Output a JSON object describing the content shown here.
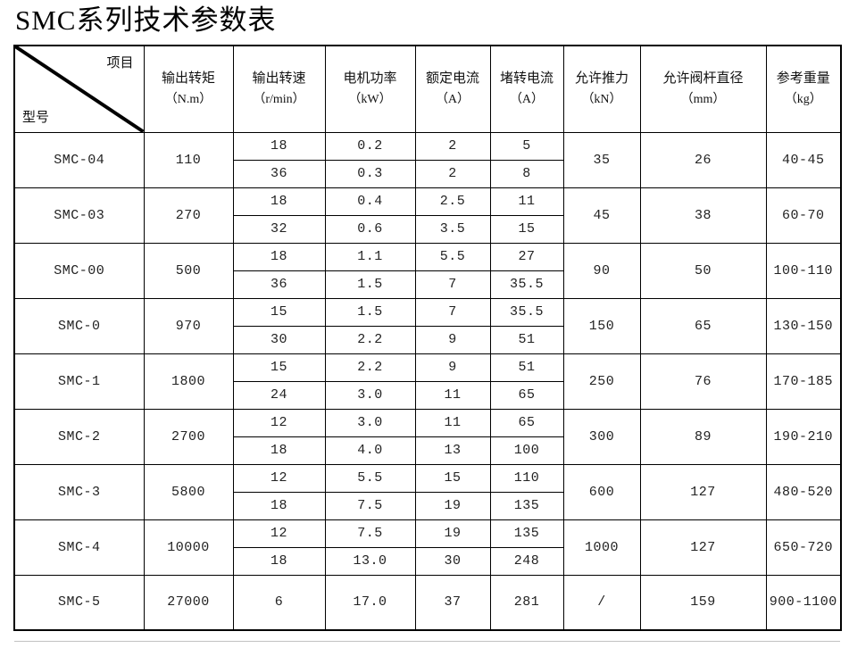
{
  "title": "SMC系列技术参数表",
  "table": {
    "corner": {
      "top_right": "项目",
      "bottom_left": "型号"
    },
    "columns": [
      {
        "label": "输出转矩",
        "unit": "（N.m）"
      },
      {
        "label": "输出转速",
        "unit": "（r/min）"
      },
      {
        "label": "电机功率",
        "unit": "（kW）"
      },
      {
        "label": "额定电流",
        "unit": "（A）"
      },
      {
        "label": "堵转电流",
        "unit": "（A）"
      },
      {
        "label": "允许推力",
        "unit": "（kN）"
      },
      {
        "label": "允许阀杆直径",
        "unit": "（mm）"
      },
      {
        "label": "参考重量",
        "unit": "（kg）"
      }
    ],
    "rows": [
      {
        "model": "SMC-04",
        "torque": "110",
        "sub": [
          {
            "speed": "18",
            "power": "0.2",
            "rated": "2",
            "stall": "5"
          },
          {
            "speed": "36",
            "power": "0.3",
            "rated": "2",
            "stall": "8"
          }
        ],
        "thrust": "35",
        "stem": "26",
        "weight": "40-45"
      },
      {
        "model": "SMC-03",
        "torque": "270",
        "sub": [
          {
            "speed": "18",
            "power": "0.4",
            "rated": "2.5",
            "stall": "11"
          },
          {
            "speed": "32",
            "power": "0.6",
            "rated": "3.5",
            "stall": "15"
          }
        ],
        "thrust": "45",
        "stem": "38",
        "weight": "60-70"
      },
      {
        "model": "SMC-00",
        "torque": "500",
        "sub": [
          {
            "speed": "18",
            "power": "1.1",
            "rated": "5.5",
            "stall": "27"
          },
          {
            "speed": "36",
            "power": "1.5",
            "rated": "7",
            "stall": "35.5"
          }
        ],
        "thrust": "90",
        "stem": "50",
        "weight": "100-110"
      },
      {
        "model": "SMC-0",
        "torque": "970",
        "sub": [
          {
            "speed": "15",
            "power": "1.5",
            "rated": "7",
            "stall": "35.5"
          },
          {
            "speed": "30",
            "power": "2.2",
            "rated": "9",
            "stall": "51"
          }
        ],
        "thrust": "150",
        "stem": "65",
        "weight": "130-150"
      },
      {
        "model": "SMC-1",
        "torque": "1800",
        "sub": [
          {
            "speed": "15",
            "power": "2.2",
            "rated": "9",
            "stall": "51"
          },
          {
            "speed": "24",
            "power": "3.0",
            "rated": "11",
            "stall": "65"
          }
        ],
        "thrust": "250",
        "stem": "76",
        "weight": "170-185"
      },
      {
        "model": "SMC-2",
        "torque": "2700",
        "sub": [
          {
            "speed": "12",
            "power": "3.0",
            "rated": "11",
            "stall": "65"
          },
          {
            "speed": "18",
            "power": "4.0",
            "rated": "13",
            "stall": "100"
          }
        ],
        "thrust": "300",
        "stem": "89",
        "weight": "190-210"
      },
      {
        "model": "SMC-3",
        "torque": "5800",
        "sub": [
          {
            "speed": "12",
            "power": "5.5",
            "rated": "15",
            "stall": "110"
          },
          {
            "speed": "18",
            "power": "7.5",
            "rated": "19",
            "stall": "135"
          }
        ],
        "thrust": "600",
        "stem": "127",
        "weight": "480-520"
      },
      {
        "model": "SMC-4",
        "torque": "10000",
        "sub": [
          {
            "speed": "12",
            "power": "7.5",
            "rated": "19",
            "stall": "135"
          },
          {
            "speed": "18",
            "power": "13.0",
            "rated": "30",
            "stall": "248"
          }
        ],
        "thrust": "1000",
        "stem": "127",
        "weight": "650-720"
      },
      {
        "model": "SMC-5",
        "torque": "27000",
        "sub": [
          {
            "speed": "6",
            "power": "17.0",
            "rated": "37",
            "stall": "281"
          }
        ],
        "thrust": "/",
        "stem": "159",
        "weight": "900-1100"
      }
    ]
  },
  "colors": {
    "border": "#000000",
    "text": "#1a1a1a",
    "background": "#ffffff"
  }
}
